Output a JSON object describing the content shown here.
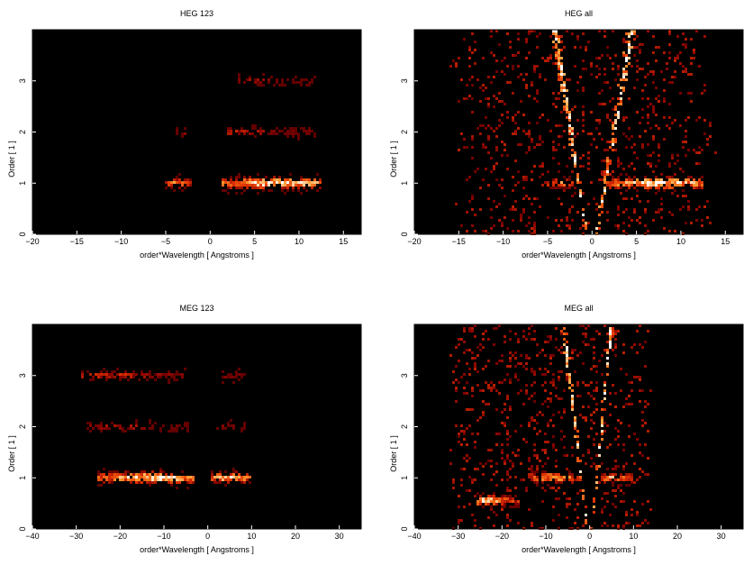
{
  "chart_data": [
    {
      "type": "heatmap",
      "title": "HEG 123",
      "xlabel": "order*Wavelength [ Angstroms ]",
      "ylabel": "Order [ 1 ]",
      "xlim": [
        -20,
        17
      ],
      "ylim": [
        0,
        4
      ],
      "xticks": [
        "−20",
        "−15",
        "−10",
        "−5",
        "0",
        "5",
        "10",
        "15"
      ],
      "xtick_values": [
        -20,
        -15,
        -10,
        -5,
        0,
        5,
        10,
        15
      ],
      "yticks": [
        "0",
        "1",
        "2",
        "3"
      ],
      "ytick_values": [
        0,
        1,
        2,
        3
      ],
      "colormap": [
        "#000000",
        "#7a0000",
        "#e03000",
        "#ff9a30",
        "#ffffff"
      ],
      "bands": [
        {
          "order": 1,
          "x_from": -5,
          "x_to": -2,
          "peak_x": -3.6,
          "peak": 0.7
        },
        {
          "order": 1,
          "x_from": 1.3,
          "x_to": 12.5,
          "peak_x": 7.5,
          "peak": 1.0
        },
        {
          "order": 2,
          "x_from": -4,
          "x_to": -2.6,
          "peak_x": -3.2,
          "peak": 0.35
        },
        {
          "order": 2,
          "x_from": 2,
          "x_to": 12,
          "peak_x": 3,
          "peak": 0.4
        },
        {
          "order": 3,
          "x_from": 3,
          "x_to": 12,
          "peak_x": 3.8,
          "peak": 0.35
        }
      ]
    },
    {
      "type": "heatmap",
      "title": "HEG all",
      "xlabel": "order*Wavelength [ Angstroms ]",
      "ylabel": "Order [ 1 ]",
      "xlim": [
        -20,
        17
      ],
      "ylim": [
        0,
        4
      ],
      "xticks": [
        "−20",
        "−15",
        "−10",
        "−5",
        "0",
        "5",
        "10",
        "15"
      ],
      "xtick_values": [
        -20,
        -15,
        -10,
        -5,
        0,
        5,
        10,
        15
      ],
      "yticks": [
        "0",
        "1",
        "2",
        "3"
      ],
      "ytick_values": [
        0,
        1,
        2,
        3
      ],
      "colormap": [
        "#000000",
        "#7a0000",
        "#e03000",
        "#ff9a30",
        "#ffffff"
      ],
      "bands": [
        {
          "order": 1,
          "x_from": -5,
          "x_to": -2,
          "peak_x": -3.6,
          "peak": 0.7
        },
        {
          "order": 1,
          "x_from": 1.3,
          "x_to": 12.5,
          "peak_x": 7.5,
          "peak": 1.0
        }
      ],
      "wedges": [
        {
          "side": "negative",
          "x_at_order_4": -4.2,
          "x_at_order_0": -0.6
        },
        {
          "side": "positive",
          "x_at_order_4": 4.5,
          "x_at_order_0": 0.5
        }
      ],
      "background_region": {
        "x_from": -16,
        "x_to": 14,
        "order_from": 0,
        "order_to": 4
      }
    },
    {
      "type": "heatmap",
      "title": "MEG 123",
      "xlabel": "order*Wavelength [ Angstroms ]",
      "ylabel": "Order [ 1 ]",
      "xlim": [
        -40,
        35
      ],
      "ylim": [
        0,
        4
      ],
      "xticks": [
        "−40",
        "−30",
        "−20",
        "−10",
        "0",
        "10",
        "20",
        "30"
      ],
      "xtick_values": [
        -40,
        -30,
        -20,
        -10,
        0,
        10,
        20,
        30
      ],
      "yticks": [
        "0",
        "1",
        "2",
        "3"
      ],
      "ytick_values": [
        0,
        1,
        2,
        3
      ],
      "colormap": [
        "#000000",
        "#7a0000",
        "#e03000",
        "#ff9a30",
        "#ffffff"
      ],
      "bands": [
        {
          "order": 1,
          "x_from": -25,
          "x_to": -3,
          "peak_x": -12,
          "peak": 1.0
        },
        {
          "order": 1,
          "x_from": 0.5,
          "x_to": 10,
          "peak_x": 5,
          "peak": 0.9
        },
        {
          "order": 2,
          "x_from": -28,
          "x_to": -4,
          "peak_x": -20,
          "peak": 0.35
        },
        {
          "order": 2,
          "x_from": 2,
          "x_to": 9,
          "peak_x": 5,
          "peak": 0.3
        },
        {
          "order": 3,
          "x_from": -29,
          "x_to": -5,
          "peak_x": -22,
          "peak": 0.45
        },
        {
          "order": 3,
          "x_from": 3,
          "x_to": 9,
          "peak_x": 5,
          "peak": 0.3
        }
      ]
    },
    {
      "type": "heatmap",
      "title": "MEG all",
      "xlabel": "order*Wavelength [ Angstroms ]",
      "ylabel": "Order [ 1 ]",
      "xlim": [
        -40,
        35
      ],
      "ylim": [
        0,
        4
      ],
      "xticks": [
        "−40",
        "−30",
        "−20",
        "−10",
        "0",
        "10",
        "20",
        "30"
      ],
      "xtick_values": [
        -40,
        -30,
        -20,
        -10,
        0,
        10,
        20,
        30
      ],
      "yticks": [
        "0",
        "1",
        "2",
        "3"
      ],
      "ytick_values": [
        0,
        1,
        2,
        3
      ],
      "colormap": [
        "#000000",
        "#7a0000",
        "#e03000",
        "#ff9a30",
        "#ffffff"
      ],
      "bands": [
        {
          "order": 1,
          "x_from": -14,
          "x_to": -2,
          "peak_x": -8,
          "peak": 0.8
        },
        {
          "order": 1,
          "x_from": 2.5,
          "x_to": 10,
          "peak_x": 6,
          "peak": 0.8
        },
        {
          "order": 0.55,
          "x_from": -26,
          "x_to": -16,
          "peak_x": -24,
          "peak": 0.9
        }
      ],
      "wedges": [
        {
          "side": "negative",
          "x_at_order_4": -6,
          "x_at_order_0": -0.5
        },
        {
          "side": "positive",
          "x_at_order_4": 5,
          "x_at_order_0": 0.5
        }
      ],
      "background_region": {
        "x_from": -33,
        "x_to": 15,
        "order_from": 0,
        "order_to": 4
      }
    }
  ]
}
